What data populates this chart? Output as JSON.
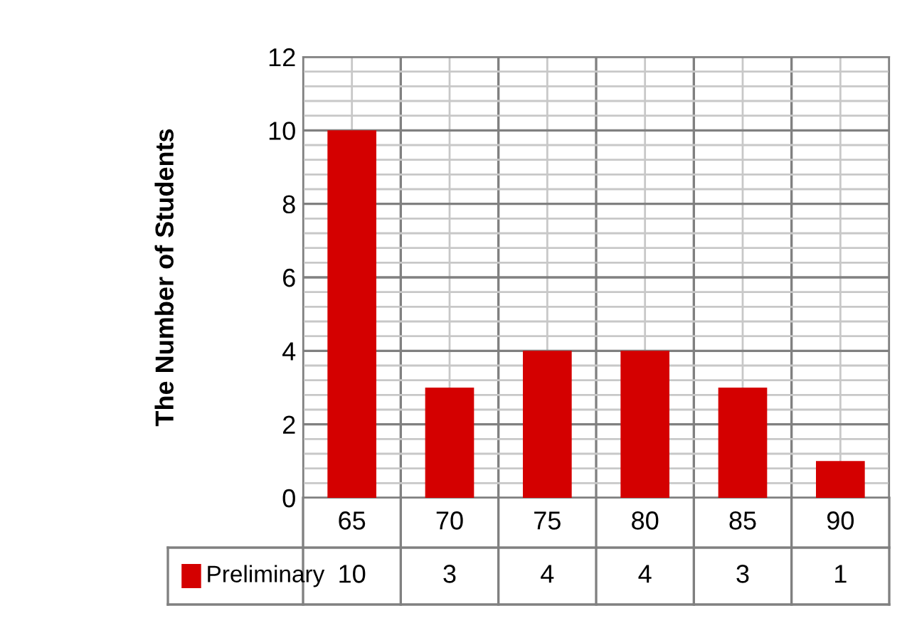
{
  "chart_data": {
    "type": "bar",
    "ylabel": "The Number of Students",
    "categories": [
      "65",
      "70",
      "75",
      "80",
      "85",
      "90"
    ],
    "series": [
      {
        "name": "Preliminary",
        "color": "#d40000",
        "values": [
          10,
          3,
          4,
          4,
          3,
          1
        ]
      }
    ],
    "ylim": [
      0,
      12
    ],
    "yticks": [
      0,
      2,
      4,
      6,
      8,
      10,
      12
    ],
    "grid": true,
    "legend": "bottom",
    "data_labels": true
  }
}
